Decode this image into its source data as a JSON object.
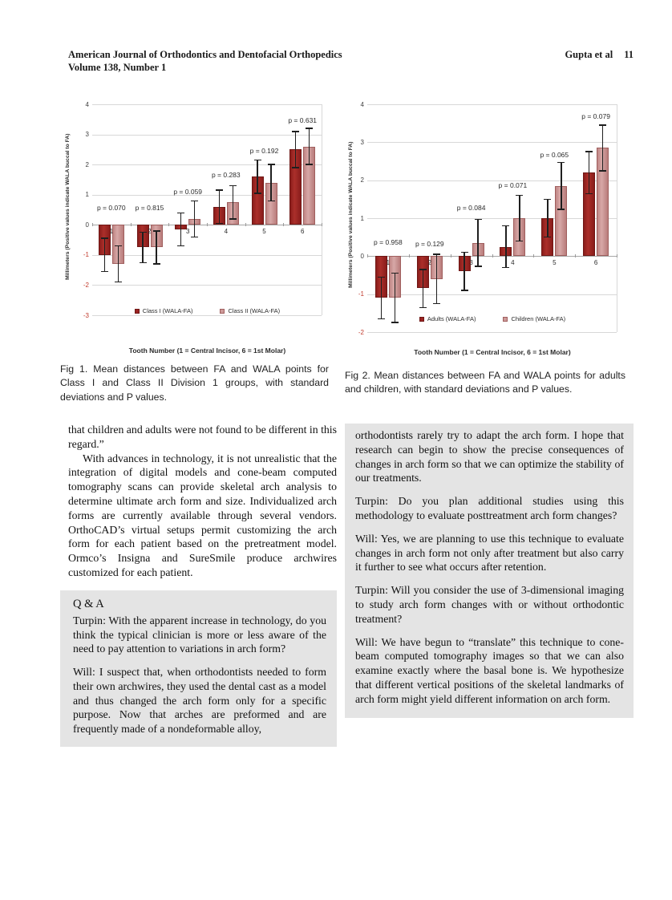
{
  "header": {
    "journal": "American Journal of Orthodontics and Dentofacial Orthopedics",
    "volume": "Volume 138, Number 1",
    "authors": "Gupta et al",
    "page_number": "11"
  },
  "figures": {
    "fig1_caption": "Fig 1. Mean distances between FA and WALA points for Class I and Class II Division 1 groups, with standard deviations and P values.",
    "fig2_caption": "Fig 2. Mean distances between FA and WALA points for adults and children, with standard deviations and P values."
  },
  "chart_data": [
    {
      "type": "bar",
      "title": "",
      "categories": [
        "1",
        "2",
        "3",
        "4",
        "5",
        "6"
      ],
      "xlabel": "Tooth Number (1 = Central Incisor, 6 = 1st Molar)",
      "ylabel": "Millimeters (Positive values indicate WALA buccal to FA)",
      "ylim": [
        -3,
        4
      ],
      "grid": true,
      "legend_position": "inside-bottom",
      "series": [
        {
          "name": "Class I (WALA-FA)",
          "values": [
            -1.0,
            -0.75,
            -0.15,
            0.6,
            1.6,
            2.5
          ],
          "errors": [
            0.55,
            0.5,
            0.55,
            0.55,
            0.55,
            0.6
          ]
        },
        {
          "name": "Class II (WALA-FA)",
          "values": [
            -1.3,
            -0.75,
            0.2,
            0.75,
            1.4,
            2.6
          ],
          "errors": [
            0.6,
            0.55,
            0.6,
            0.55,
            0.6,
            0.6
          ]
        }
      ],
      "p_values": [
        "p = 0.070",
        "p = 0.815",
        "p = 0.059",
        "p = 0.283",
        "p = 0.192",
        "p = 0.631"
      ],
      "p_label_y": [
        0.4,
        0.4,
        0.95,
        1.5,
        2.3,
        3.3
      ]
    },
    {
      "type": "bar",
      "title": "",
      "categories": [
        "1",
        "2",
        "3",
        "4",
        "5",
        "6"
      ],
      "xlabel": "Tooth Number (1 = Central Incisor, 6 = 1st Molar)",
      "ylabel": "Millimeters (Positive values indicate WALA buccal to FA)",
      "ylim": [
        -2,
        4
      ],
      "grid": true,
      "legend_position": "inside-bottom",
      "series": [
        {
          "name": "Adults (WALA-FA)",
          "values": [
            -1.1,
            -0.85,
            -0.4,
            0.25,
            1.0,
            2.2
          ],
          "errors": [
            0.55,
            0.5,
            0.5,
            0.55,
            0.5,
            0.55
          ]
        },
        {
          "name": "Children (WALA-FA)",
          "values": [
            -1.1,
            -0.6,
            0.35,
            1.0,
            1.85,
            2.85
          ],
          "errors": [
            0.65,
            0.65,
            0.62,
            0.6,
            0.62,
            0.6
          ]
        }
      ],
      "p_values": [
        "p = 0.958",
        "p = 0.129",
        "p = 0.084",
        "p = 0.071",
        "p = 0.065",
        "p = 0.079"
      ],
      "p_label_y": [
        0.25,
        0.2,
        1.15,
        1.75,
        2.55,
        3.55
      ]
    }
  ],
  "article": {
    "left_column": {
      "paragraphs": [
        "that children and adults were not found to be different in this regard.”",
        "With advances in technology, it is not unrealistic that the integration of digital models and cone-beam computed tomography scans can provide skeletal arch analysis to determine ultimate arch form and size. Individualized arch forms are currently available through several vendors. OrthoCAD’s virtual setups permit customizing the arch form for each patient based on the pretreatment model. Ormco’s Insigna and SureSmile produce archwires customized for each patient."
      ],
      "qa_heading": "Q & A",
      "qa_paragraphs": [
        "Turpin: With the apparent increase in technology, do you think the typical clinician is more or less aware of the need to pay attention to variations in arch form?",
        "Will: I suspect that, when orthodontists needed to form their own archwires, they used the dental cast as a model and thus changed the arch form only for a specific purpose. Now that arches are preformed and are frequently made of a nondeformable alloy,"
      ]
    },
    "right_column": {
      "paragraphs": [
        "orthodontists rarely try to adapt the arch form. I hope that research can begin to show the precise consequences of changes in arch form so that we can optimize the stability of our treatments.",
        "Turpin: Do you plan additional studies using this methodology to evaluate posttreatment arch form changes?",
        "Will: Yes, we are planning to use this technique to evaluate changes in arch form not only after treatment but also carry it further to see what occurs after retention.",
        "Turpin: Will you consider the use of 3-dimensional imaging to study arch form changes with or without orthodontic treatment?",
        "Will: We have begun to “translate” this technique to cone-beam computed tomography images so that we can also examine exactly where the basal bone is. We hypothesize that different vertical positions of the skeletal landmarks of arch form might yield different information on arch form."
      ]
    }
  },
  "colors": {
    "series1_fill": "#9b2423",
    "series2_fill": "#cd9a99",
    "negative_tick": "#c0392b",
    "panel_gray": "#e4e4e4"
  }
}
